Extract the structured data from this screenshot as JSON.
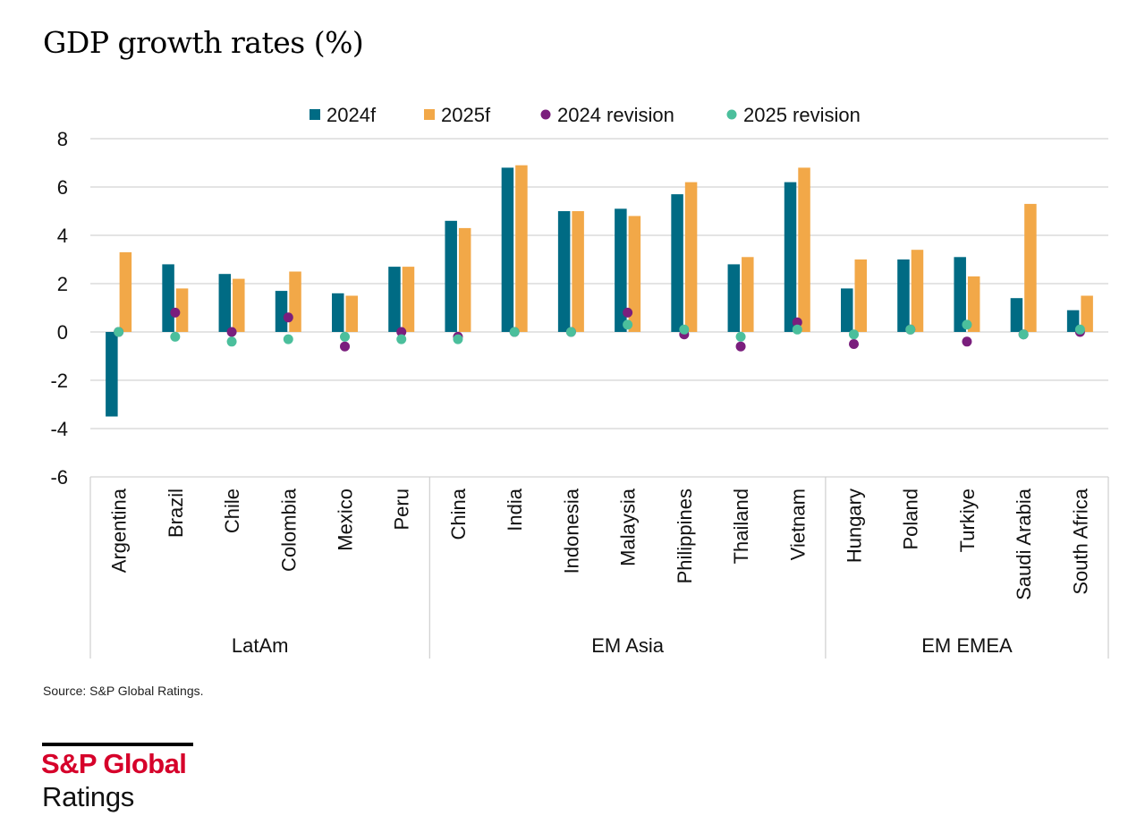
{
  "chart_data": {
    "type": "bar",
    "title": "GDP growth rates (%)",
    "ylim": [
      -6,
      8
    ],
    "yticks": [
      8,
      6,
      4,
      2,
      0,
      -2,
      -4,
      -6
    ],
    "ytick_labels": [
      "8",
      "6",
      "4",
      "2",
      "0",
      "-2",
      "-4",
      "-6"
    ],
    "grid": true,
    "legend_position": "top",
    "categories": [
      "Argentina",
      "Brazil",
      "Chile",
      "Colombia",
      "Mexico",
      "Peru",
      "China",
      "India",
      "Indonesia",
      "Malaysia",
      "Philippines",
      "Thailand",
      "Vietnam",
      "Hungary",
      "Poland",
      "Turkiye",
      "Saudi Arabia",
      "South Africa"
    ],
    "groups": [
      {
        "name": "LatAm",
        "start": 0,
        "end": 5
      },
      {
        "name": "EM Asia",
        "start": 6,
        "end": 12
      },
      {
        "name": "EM EMEA",
        "start": 13,
        "end": 17
      }
    ],
    "series": [
      {
        "name": "2024f",
        "kind": "bar",
        "color": "#006b84",
        "values": [
          -3.5,
          2.8,
          2.4,
          1.7,
          1.6,
          2.7,
          4.6,
          6.8,
          5.0,
          5.1,
          5.7,
          2.8,
          6.2,
          1.8,
          3.0,
          3.1,
          1.4,
          0.9
        ]
      },
      {
        "name": "2025f",
        "kind": "bar",
        "color": "#f2a848",
        "values": [
          3.3,
          1.8,
          2.2,
          2.5,
          1.5,
          2.7,
          4.3,
          6.9,
          5.0,
          4.8,
          6.2,
          3.1,
          6.8,
          3.0,
          3.4,
          2.3,
          5.3,
          1.5
        ]
      },
      {
        "name": "2024 revision",
        "kind": "dot",
        "color": "#7a1e7d",
        "values": [
          0.0,
          0.8,
          0.0,
          0.6,
          -0.6,
          0.0,
          -0.2,
          0.0,
          0.0,
          0.8,
          -0.1,
          -0.6,
          0.4,
          -0.5,
          0.1,
          -0.4,
          -0.1,
          0.0
        ]
      },
      {
        "name": "2025 revision",
        "kind": "dot",
        "color": "#4bbf9c",
        "values": [
          0.0,
          -0.2,
          -0.4,
          -0.3,
          -0.2,
          -0.3,
          -0.3,
          0.0,
          0.0,
          0.3,
          0.1,
          -0.2,
          0.1,
          -0.1,
          0.1,
          0.3,
          -0.1,
          0.1
        ]
      }
    ]
  },
  "footer": {
    "source": "Source: S&P Global Ratings."
  },
  "brand": {
    "name": "S&P Global",
    "sub": "Ratings"
  }
}
